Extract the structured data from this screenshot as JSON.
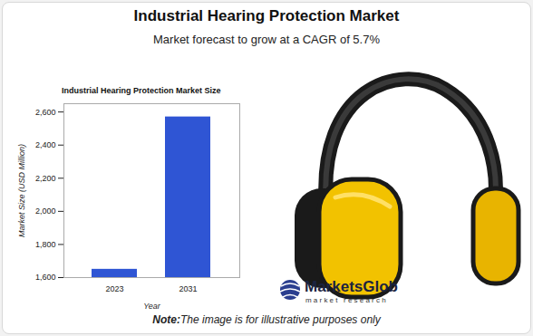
{
  "chart_data": {
    "type": "bar",
    "title": "Industrial Hearing Protection Market",
    "subtitle": "Market forecast to grow at a CAGR of 5.7%",
    "chart_title": "Industrial Hearing Protection Market Size",
    "x_label": "Year",
    "y_label": "Market Size (USD Million)",
    "categories": [
      "2023",
      "2031"
    ],
    "values": [
      1650,
      2570
    ],
    "color": "#2f55d4",
    "ylim": [
      1600,
      2650
    ],
    "yticks": [
      {
        "value": 1600,
        "label": "1,600"
      },
      {
        "value": 1800,
        "label": "1,800"
      },
      {
        "value": 2000,
        "label": "2,000"
      },
      {
        "value": 2200,
        "label": "2,200"
      },
      {
        "value": 2400,
        "label": "2,400"
      },
      {
        "value": 2600,
        "label": "2,600"
      }
    ],
    "grid": false
  },
  "logo": {
    "name": "MarketsGlob",
    "tagline": "market research"
  },
  "note": {
    "label": "Note:",
    "text": "The image is for illustrative purposes only"
  }
}
